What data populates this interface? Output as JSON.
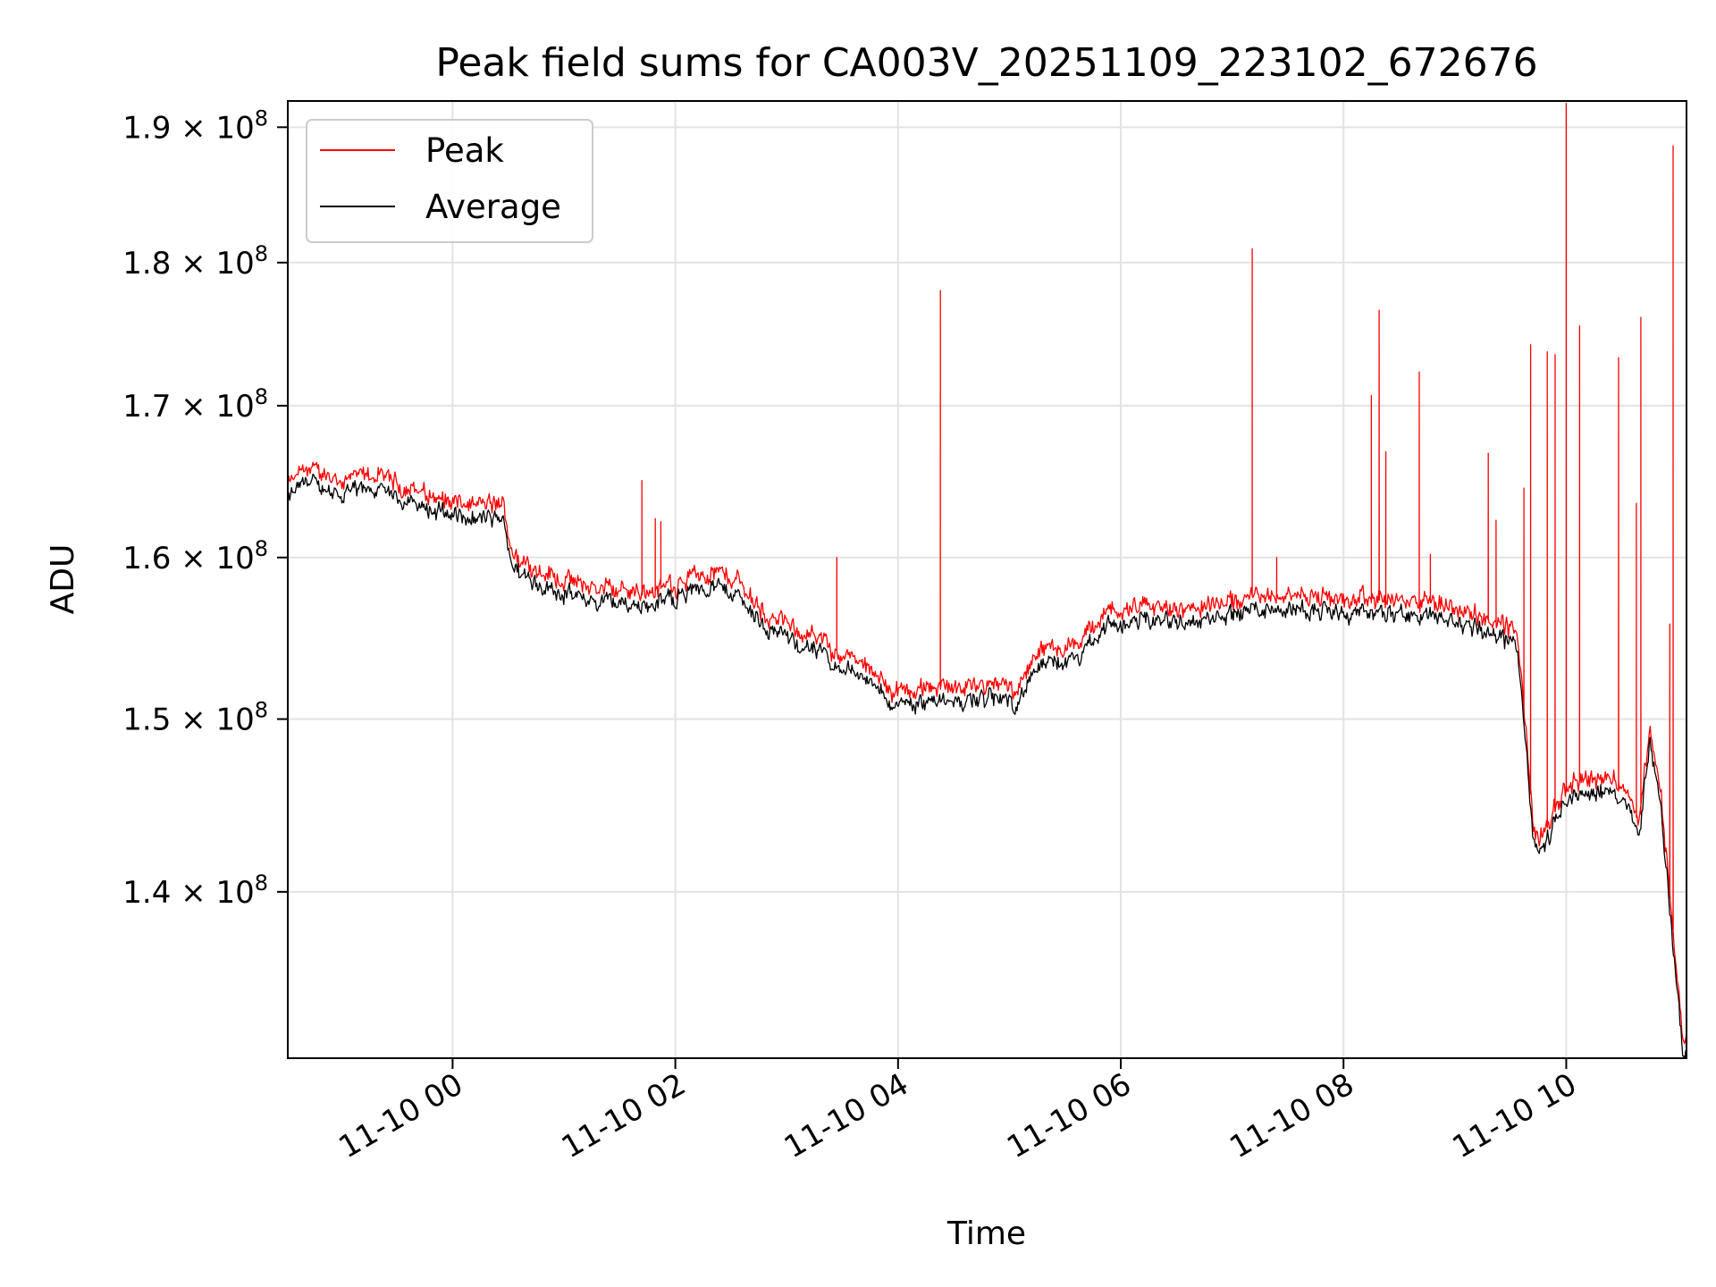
{
  "chart_data": {
    "type": "line",
    "title": "Peak field sums for CA003V_20251109_223102_672676",
    "xlabel": "Time",
    "ylabel": "ADU",
    "y_scale": "log",
    "x_range_hours": [
      -1.48,
      11.08
    ],
    "ylim": [
      131000000,
      192000000
    ],
    "grid": true,
    "legend_position": "upper-left",
    "x_ticks": [
      {
        "value": 0,
        "label": "11-10 00"
      },
      {
        "value": 2,
        "label": "11-10 02"
      },
      {
        "value": 4,
        "label": "11-10 04"
      },
      {
        "value": 6,
        "label": "11-10 06"
      },
      {
        "value": 8,
        "label": "11-10 08"
      },
      {
        "value": 10,
        "label": "11-10 10"
      }
    ],
    "y_ticks": [
      {
        "value": 140000000,
        "mantissa": "1.4",
        "base": "10",
        "exponent": "8"
      },
      {
        "value": 150000000,
        "mantissa": "1.5",
        "base": "10",
        "exponent": "8"
      },
      {
        "value": 160000000,
        "mantissa": "1.6",
        "base": "10",
        "exponent": "8"
      },
      {
        "value": 170000000,
        "mantissa": "1.7",
        "base": "10",
        "exponent": "8"
      },
      {
        "value": 180000000,
        "mantissa": "1.8",
        "base": "10",
        "exponent": "8"
      },
      {
        "value": 190000000,
        "mantissa": "1.9",
        "base": "10",
        "exponent": "8"
      }
    ],
    "series": [
      {
        "name": "Peak",
        "color": "#ff0000"
      },
      {
        "name": "Average",
        "color": "#000000"
      }
    ],
    "average_trend": {
      "x": [
        -1.48,
        -1.3,
        -1.0,
        -0.7,
        -0.3,
        0.1,
        0.45,
        0.55,
        0.8,
        1.2,
        1.6,
        1.8,
        2.0,
        2.3,
        2.55,
        2.8,
        3.2,
        3.6,
        4.0,
        4.4,
        4.8,
        5.05,
        5.3,
        5.6,
        5.9,
        6.3,
        6.8,
        7.2,
        7.6,
        8.0,
        8.4,
        8.8,
        9.2,
        9.55,
        9.65,
        9.7,
        9.75,
        9.85,
        10.0,
        10.3,
        10.55,
        10.65,
        10.75,
        10.85,
        10.95,
        11.05
      ],
      "y": [
        164000000,
        165200000,
        164300000,
        164700000,
        163600000,
        162700000,
        162700000,
        159500000,
        158500000,
        157500000,
        157300000,
        157200000,
        157800000,
        158500000,
        158000000,
        155800000,
        154500000,
        153000000,
        151000000,
        151400000,
        151400000,
        151300000,
        153500000,
        153800000,
        156000000,
        156200000,
        156200000,
        157000000,
        157100000,
        156600000,
        156700000,
        156500000,
        155800000,
        154800000,
        148000000,
        143000000,
        142500000,
        143200000,
        145500000,
        146100000,
        145500000,
        143200000,
        149000000,
        145000000,
        138000000,
        131200000
      ]
    },
    "peak_spikes": [
      {
        "x": 1.7,
        "y": 165000000
      },
      {
        "x": 1.82,
        "y": 162500000
      },
      {
        "x": 1.87,
        "y": 162300000
      },
      {
        "x": 3.45,
        "y": 160000000
      },
      {
        "x": 4.38,
        "y": 178000000
      },
      {
        "x": 7.18,
        "y": 181000000
      },
      {
        "x": 7.4,
        "y": 160000000
      },
      {
        "x": 8.25,
        "y": 170700000
      },
      {
        "x": 8.32,
        "y": 176600000
      },
      {
        "x": 8.38,
        "y": 166900000
      },
      {
        "x": 8.68,
        "y": 172300000
      },
      {
        "x": 8.78,
        "y": 160200000
      },
      {
        "x": 9.3,
        "y": 166800000
      },
      {
        "x": 9.37,
        "y": 162400000
      },
      {
        "x": 9.62,
        "y": 164500000
      },
      {
        "x": 9.68,
        "y": 174200000
      },
      {
        "x": 9.83,
        "y": 173700000
      },
      {
        "x": 9.9,
        "y": 173500000
      },
      {
        "x": 10.0,
        "y": 191800000
      },
      {
        "x": 10.12,
        "y": 175500000
      },
      {
        "x": 10.47,
        "y": 173300000
      },
      {
        "x": 10.63,
        "y": 163500000
      },
      {
        "x": 10.67,
        "y": 176100000
      },
      {
        "x": 10.93,
        "y": 155800000
      },
      {
        "x": 10.96,
        "y": 188600000
      }
    ]
  }
}
